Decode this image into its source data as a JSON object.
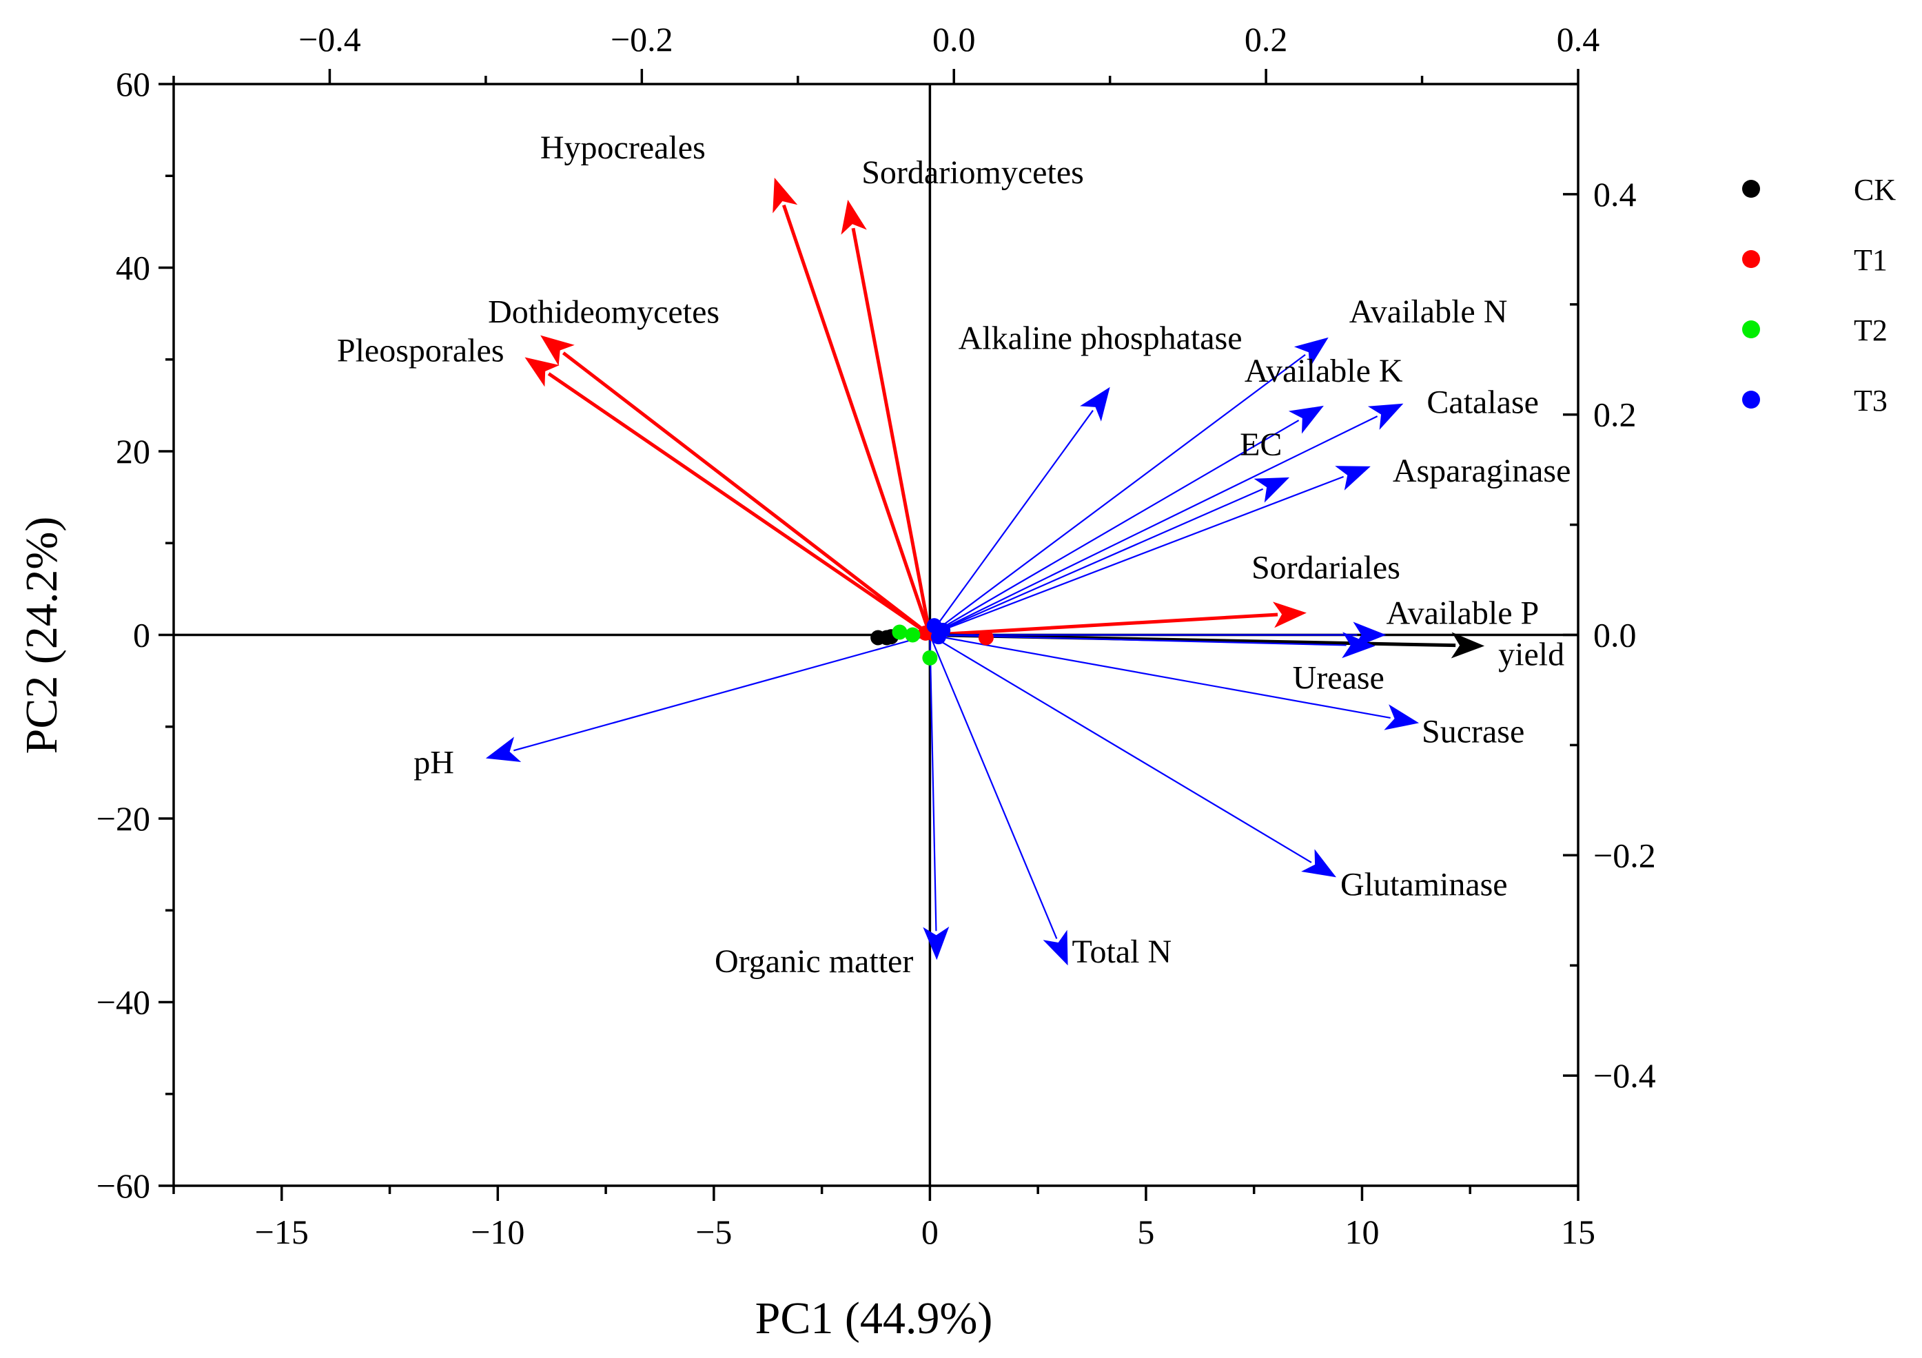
{
  "chart_data": {
    "type": "biplot",
    "xlabel": "PC1 (44.9%)",
    "ylabel": "PC2 (24.2%)",
    "axes": {
      "bottom": {
        "range": [
          -17.5,
          15
        ],
        "ticks": [
          -15,
          -10,
          -5,
          0,
          5,
          10,
          15
        ],
        "tick_labels": [
          "−15",
          "−10",
          "−5",
          "0",
          "5",
          "10",
          "15"
        ]
      },
      "left": {
        "range": [
          -60,
          60
        ],
        "ticks": [
          -60,
          -40,
          -20,
          0,
          20,
          40,
          60
        ],
        "tick_labels": [
          "−60",
          "−40",
          "−20",
          "0",
          "20",
          "40",
          "60"
        ]
      },
      "top": {
        "range": [
          -0.5,
          0.4
        ],
        "ticks": [
          -0.4,
          -0.2,
          0.0,
          0.2,
          0.4
        ],
        "tick_labels": [
          "−0.4",
          "−0.2",
          "0.0",
          "0.2",
          "0.4"
        ]
      },
      "right": {
        "range": [
          -0.5,
          0.5
        ],
        "ticks": [
          -0.4,
          -0.2,
          0.0,
          0.2,
          0.4
        ],
        "tick_labels": [
          "−0.4",
          "−0.2",
          "0.0",
          "0.2",
          "0.4"
        ]
      }
    },
    "legend": {
      "position": "right",
      "entries": [
        {
          "name": "CK",
          "color": "#000000"
        },
        {
          "name": "T1",
          "color": "#ff0000"
        },
        {
          "name": "T2",
          "color": "#00ee00"
        },
        {
          "name": "T3",
          "color": "#0000ff"
        }
      ]
    },
    "samples": [
      {
        "group": "CK",
        "pc1": -1.2,
        "pc2": -0.3
      },
      {
        "group": "CK",
        "pc1": -1.0,
        "pc2": -0.3
      },
      {
        "group": "CK",
        "pc1": -0.9,
        "pc2": -0.2
      },
      {
        "group": "T1",
        "pc1": 1.3,
        "pc2": -0.3
      },
      {
        "group": "T1",
        "pc1": 0.1,
        "pc2": 0.1
      },
      {
        "group": "T1",
        "pc1": -0.1,
        "pc2": 0.2
      },
      {
        "group": "T2",
        "pc1": -0.7,
        "pc2": 0.3
      },
      {
        "group": "T2",
        "pc1": -0.4,
        "pc2": 0.0
      },
      {
        "group": "T2",
        "pc1": 0.0,
        "pc2": -2.5
      },
      {
        "group": "T3",
        "pc1": 0.1,
        "pc2": 1.0
      },
      {
        "group": "T3",
        "pc1": 0.3,
        "pc2": 0.5
      },
      {
        "group": "T3",
        "pc1": 0.2,
        "pc2": -0.2
      }
    ],
    "loadings": [
      {
        "name": "Hypocreales",
        "group": "T1",
        "x": -0.115,
        "y": 0.415
      },
      {
        "name": "Sordariomycetes",
        "group": "T1",
        "x": -0.068,
        "y": 0.395
      },
      {
        "name": "Dothideomycetes",
        "group": "T1",
        "x": -0.265,
        "y": 0.272
      },
      {
        "name": "Pleosporales",
        "group": "T1",
        "x": -0.275,
        "y": 0.252
      },
      {
        "name": "Sordariales",
        "group": "T1",
        "x": 0.226,
        "y": 0.02
      },
      {
        "name": "yield",
        "group": "CK",
        "x": 0.34,
        "y": -0.01
      },
      {
        "name": "Alkaline phosphatase",
        "group": "T3",
        "x": 0.1,
        "y": 0.225
      },
      {
        "name": "Available N",
        "group": "T3",
        "x": 0.24,
        "y": 0.27
      },
      {
        "name": "Available K",
        "group": "T3",
        "x": 0.237,
        "y": 0.208
      },
      {
        "name": "Catalase",
        "group": "T3",
        "x": 0.288,
        "y": 0.21
      },
      {
        "name": "EC",
        "group": "T3",
        "x": 0.215,
        "y": 0.143
      },
      {
        "name": "Asparaginase",
        "group": "T3",
        "x": 0.267,
        "y": 0.153
      },
      {
        "name": "Available P",
        "group": "T3",
        "x": 0.277,
        "y": 0.0
      },
      {
        "name": "Urease",
        "group": "T3",
        "x": 0.27,
        "y": -0.01
      },
      {
        "name": "Sucrase",
        "group": "T3",
        "x": 0.298,
        "y": -0.08
      },
      {
        "name": "Glutaminase",
        "group": "T3",
        "x": 0.245,
        "y": -0.22
      },
      {
        "name": "Total N",
        "group": "T3",
        "x": 0.073,
        "y": -0.3
      },
      {
        "name": "Organic matter",
        "group": "T3",
        "x": -0.011,
        "y": -0.295
      },
      {
        "name": "pH",
        "group": "T3",
        "x": -0.3,
        "y": -0.112
      }
    ]
  }
}
